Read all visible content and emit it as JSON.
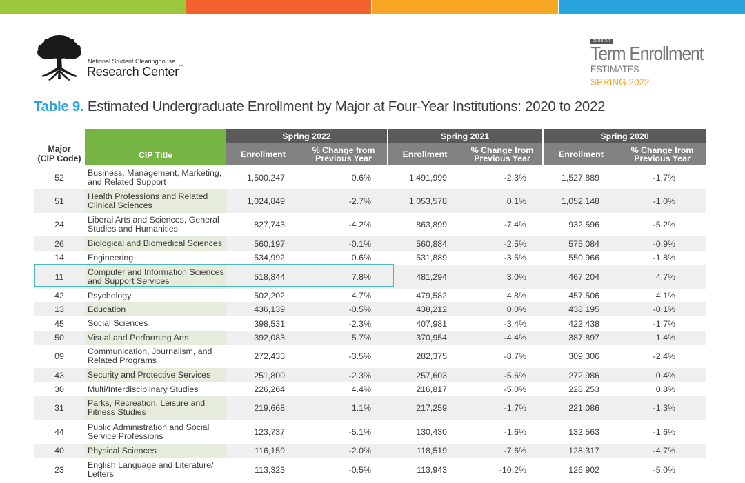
{
  "brand": {
    "top_bar_colors": [
      "#9cc83c",
      "#f4632d",
      "#f6a623",
      "#29a3dd"
    ],
    "logo_line1": "National Student Clearinghouse",
    "logo_line2": "Research Center",
    "logo_tm": "™",
    "badge_tag": "CURRENT",
    "badge_title": "Term Enrollment",
    "badge_subtitle": "ESTIMATES",
    "badge_term": "SPRING 2022"
  },
  "table": {
    "number": "Table 9.",
    "title": "Estimated Undergraduate Enrollment by Major at Four-Year Institutions: 2020 to 2022",
    "col_major": "Major\n(CIP Code)",
    "col_cip": "CIP Title",
    "groups": [
      "Spring 2022",
      "Spring 2021",
      "Spring 2020"
    ],
    "sub_enrollment": "Enrollment",
    "sub_change": "% Change from\nPrevious Year",
    "rows": [
      {
        "code": "52",
        "title": "Business, Management, Marketing, and Related Support",
        "e22": "1,500,247",
        "p22": "0.6%",
        "e21": "1,491,999",
        "p21": "-2.3%",
        "e20": "1,527,889",
        "p20": "-1.7%"
      },
      {
        "code": "51",
        "title": "Health Professions and Related Clinical Sciences",
        "e22": "1,024,849",
        "p22": "-2.7%",
        "e21": "1,053,578",
        "p21": "0.1%",
        "e20": "1,052,148",
        "p20": "-1.0%"
      },
      {
        "code": "24",
        "title": "Liberal Arts and Sciences, General Studies and Humanities",
        "e22": "827,743",
        "p22": "-4.2%",
        "e21": "863,899",
        "p21": "-7.4%",
        "e20": "932,596",
        "p20": "-5.2%"
      },
      {
        "code": "26",
        "title": "Biological and Biomedical Sciences",
        "e22": "560,197",
        "p22": "-0.1%",
        "e21": "560,884",
        "p21": "-2.5%",
        "e20": "575,084",
        "p20": "-0.9%"
      },
      {
        "code": "14",
        "title": "Engineering",
        "e22": "534,992",
        "p22": "0.6%",
        "e21": "531,889",
        "p21": "-3.5%",
        "e20": "550,966",
        "p20": "-1.8%"
      },
      {
        "code": "11",
        "title": "Computer and Information Sciences and Support Services",
        "e22": "518,844",
        "p22": "7.8%",
        "e21": "481,294",
        "p21": "3.0%",
        "e20": "467,204",
        "p20": "4.7%"
      },
      {
        "code": "42",
        "title": "Psychology",
        "e22": "502,202",
        "p22": "4.7%",
        "e21": "479,582",
        "p21": "4.8%",
        "e20": "457,506",
        "p20": "4.1%"
      },
      {
        "code": "13",
        "title": "Education",
        "e22": "436,139",
        "p22": "-0.5%",
        "e21": "438,212",
        "p21": "0.0%",
        "e20": "438,195",
        "p20": "-0.1%"
      },
      {
        "code": "45",
        "title": "Social Sciences",
        "e22": "398,531",
        "p22": "-2.3%",
        "e21": "407,981",
        "p21": "-3.4%",
        "e20": "422,438",
        "p20": "-1.7%"
      },
      {
        "code": "50",
        "title": "Visual and Performing Arts",
        "e22": "392,083",
        "p22": "5.7%",
        "e21": "370,954",
        "p21": "-4.4%",
        "e20": "387,897",
        "p20": "1.4%"
      },
      {
        "code": "09",
        "title": "Communication, Journalism, and Related Programs",
        "e22": "272,433",
        "p22": "-3.5%",
        "e21": "282,375",
        "p21": "-8.7%",
        "e20": "309,306",
        "p20": "-2.4%"
      },
      {
        "code": "43",
        "title": "Security and Protective Services",
        "e22": "251,800",
        "p22": "-2.3%",
        "e21": "257,603",
        "p21": "-5.6%",
        "e20": "272,986",
        "p20": "0.4%"
      },
      {
        "code": "30",
        "title": "Multi/Interdisciplinary Studies",
        "e22": "226,264",
        "p22": "4.4%",
        "e21": "216,817",
        "p21": "-5.0%",
        "e20": "228,253",
        "p20": "0.8%"
      },
      {
        "code": "31",
        "title": "Parks, Recreation, Leisure and Fitness Studies",
        "e22": "219,668",
        "p22": "1.1%",
        "e21": "217,259",
        "p21": "-1.7%",
        "e20": "221,086",
        "p20": "-1.3%"
      },
      {
        "code": "44",
        "title": "Public Administration and Social Service Professions",
        "e22": "123,737",
        "p22": "-5.1%",
        "e21": "130,430",
        "p21": "-1.6%",
        "e20": "132,563",
        "p20": "-1.6%"
      },
      {
        "code": "40",
        "title": "Physical Sciences",
        "e22": "116,159",
        "p22": "-2.0%",
        "e21": "118,519",
        "p21": "-7.6%",
        "e20": "128,317",
        "p20": "-4.7%"
      },
      {
        "code": "23",
        "title": "English Language and Literature/ Letters",
        "e22": "113,323",
        "p22": "-0.5%",
        "e21": "113,943",
        "p21": "-10.2%",
        "e20": "126,902",
        "p20": "-5.0%"
      }
    ]
  }
}
